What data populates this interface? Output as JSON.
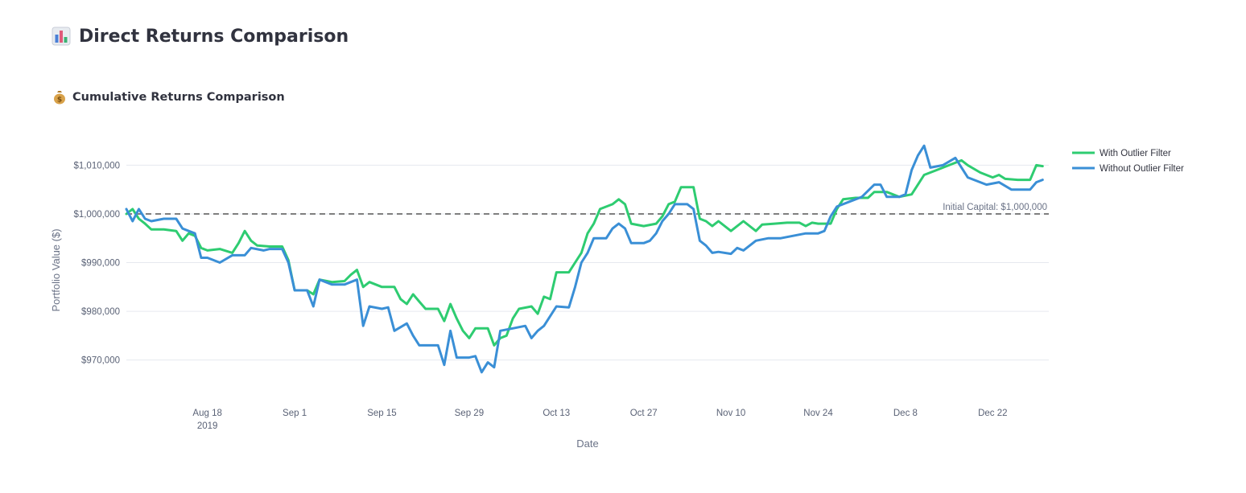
{
  "header": {
    "title": "Direct Returns Comparison",
    "icon": "bar-chart-icon"
  },
  "section": {
    "title": "Cumulative Returns Comparison",
    "icon": "money-bag-icon"
  },
  "chart_data": {
    "type": "line",
    "title": "",
    "xlabel": "Date",
    "ylabel": "Portfolio Value ($)",
    "xlim": [
      "2019-08-05",
      "2019-12-31"
    ],
    "ylim": [
      963000,
      1017500
    ],
    "x_ticks": [
      {
        "date": "2019-08-18",
        "label": "Aug 18",
        "sub": "2019"
      },
      {
        "date": "2019-09-01",
        "label": "Sep 1"
      },
      {
        "date": "2019-09-15",
        "label": "Sep 15"
      },
      {
        "date": "2019-09-29",
        "label": "Sep 29"
      },
      {
        "date": "2019-10-13",
        "label": "Oct 13"
      },
      {
        "date": "2019-10-27",
        "label": "Oct 27"
      },
      {
        "date": "2019-11-10",
        "label": "Nov 10"
      },
      {
        "date": "2019-11-24",
        "label": "Nov 24"
      },
      {
        "date": "2019-12-08",
        "label": "Dec 8"
      },
      {
        "date": "2019-12-22",
        "label": "Dec 22"
      }
    ],
    "y_ticks": [
      {
        "value": 970000,
        "label": "$970,000"
      },
      {
        "value": 980000,
        "label": "$980,000"
      },
      {
        "value": 990000,
        "label": "$990,000"
      },
      {
        "value": 1000000,
        "label": "$1,000,000"
      },
      {
        "value": 1010000,
        "label": "$1,010,000"
      }
    ],
    "grid": true,
    "legend_position": "top-right",
    "annotations": [
      {
        "type": "hline",
        "value": 1000000,
        "style": "dashed",
        "color": "#7f7f7f",
        "text": "Initial Capital: $1,000,000"
      }
    ],
    "series": [
      {
        "name": "With Outlier Filter",
        "color": "#2ecc71",
        "points": [
          [
            "2019-08-05",
            1000000
          ],
          [
            "2019-08-06",
            1001000
          ],
          [
            "2019-08-07",
            999000
          ],
          [
            "2019-08-08",
            998000
          ],
          [
            "2019-08-09",
            996800
          ],
          [
            "2019-08-11",
            996800
          ],
          [
            "2019-08-13",
            996500
          ],
          [
            "2019-08-14",
            994500
          ],
          [
            "2019-08-15",
            996000
          ],
          [
            "2019-08-16",
            995500
          ],
          [
            "2019-08-17",
            993000
          ],
          [
            "2019-08-18",
            992500
          ],
          [
            "2019-08-20",
            992800
          ],
          [
            "2019-08-22",
            992000
          ],
          [
            "2019-08-23",
            994000
          ],
          [
            "2019-08-24",
            996500
          ],
          [
            "2019-08-25",
            994500
          ],
          [
            "2019-08-26",
            993500
          ],
          [
            "2019-08-28",
            993300
          ],
          [
            "2019-08-30",
            993300
          ],
          [
            "2019-08-31",
            990500
          ],
          [
            "2019-09-01",
            984300
          ],
          [
            "2019-09-03",
            984300
          ],
          [
            "2019-09-04",
            983500
          ],
          [
            "2019-09-05",
            986500
          ],
          [
            "2019-09-07",
            986000
          ],
          [
            "2019-09-09",
            986200
          ],
          [
            "2019-09-10",
            987500
          ],
          [
            "2019-09-11",
            988500
          ],
          [
            "2019-09-12",
            985000
          ],
          [
            "2019-09-13",
            986000
          ],
          [
            "2019-09-15",
            985000
          ],
          [
            "2019-09-17",
            985000
          ],
          [
            "2019-09-18",
            982500
          ],
          [
            "2019-09-19",
            981500
          ],
          [
            "2019-09-20",
            983500
          ],
          [
            "2019-09-21",
            982000
          ],
          [
            "2019-09-22",
            980500
          ],
          [
            "2019-09-24",
            980500
          ],
          [
            "2019-09-25",
            978000
          ],
          [
            "2019-09-26",
            981500
          ],
          [
            "2019-09-27",
            978500
          ],
          [
            "2019-09-28",
            976000
          ],
          [
            "2019-09-29",
            974500
          ],
          [
            "2019-09-30",
            976500
          ],
          [
            "2019-10-02",
            976500
          ],
          [
            "2019-10-03",
            973000
          ],
          [
            "2019-10-04",
            974500
          ],
          [
            "2019-10-05",
            975000
          ],
          [
            "2019-10-06",
            978500
          ],
          [
            "2019-10-07",
            980500
          ],
          [
            "2019-10-09",
            981000
          ],
          [
            "2019-10-10",
            979500
          ],
          [
            "2019-10-11",
            983000
          ],
          [
            "2019-10-12",
            982500
          ],
          [
            "2019-10-13",
            988000
          ],
          [
            "2019-10-15",
            988000
          ],
          [
            "2019-10-16",
            990000
          ],
          [
            "2019-10-17",
            992000
          ],
          [
            "2019-10-18",
            996000
          ],
          [
            "2019-10-19",
            998000
          ],
          [
            "2019-10-20",
            1001000
          ],
          [
            "2019-10-22",
            1002000
          ],
          [
            "2019-10-23",
            1003000
          ],
          [
            "2019-10-24",
            1002000
          ],
          [
            "2019-10-25",
            998000
          ],
          [
            "2019-10-27",
            997500
          ],
          [
            "2019-10-29",
            998000
          ],
          [
            "2019-10-30",
            999500
          ],
          [
            "2019-10-31",
            1002000
          ],
          [
            "2019-11-01",
            1002500
          ],
          [
            "2019-11-02",
            1005500
          ],
          [
            "2019-11-04",
            1005500
          ],
          [
            "2019-11-05",
            999000
          ],
          [
            "2019-11-06",
            998500
          ],
          [
            "2019-11-07",
            997500
          ],
          [
            "2019-11-08",
            998500
          ],
          [
            "2019-11-10",
            996500
          ],
          [
            "2019-11-12",
            998500
          ],
          [
            "2019-11-14",
            996500
          ],
          [
            "2019-11-15",
            997800
          ],
          [
            "2019-11-17",
            998000
          ],
          [
            "2019-11-19",
            998200
          ],
          [
            "2019-11-21",
            998200
          ],
          [
            "2019-11-22",
            997500
          ],
          [
            "2019-11-23",
            998200
          ],
          [
            "2019-11-24",
            998000
          ],
          [
            "2019-11-26",
            998000
          ],
          [
            "2019-11-27",
            1001000
          ],
          [
            "2019-11-28",
            1003000
          ],
          [
            "2019-11-30",
            1003300
          ],
          [
            "2019-12-02",
            1003300
          ],
          [
            "2019-12-03",
            1004500
          ],
          [
            "2019-12-05",
            1004500
          ],
          [
            "2019-12-07",
            1003500
          ],
          [
            "2019-12-09",
            1004000
          ],
          [
            "2019-12-10",
            1006000
          ],
          [
            "2019-12-11",
            1008000
          ],
          [
            "2019-12-13",
            1009000
          ],
          [
            "2019-12-15",
            1010000
          ],
          [
            "2019-12-17",
            1011000
          ],
          [
            "2019-12-18",
            1010000
          ],
          [
            "2019-12-20",
            1008500
          ],
          [
            "2019-12-22",
            1007500
          ],
          [
            "2019-12-23",
            1008000
          ],
          [
            "2019-12-24",
            1007200
          ],
          [
            "2019-12-26",
            1007000
          ],
          [
            "2019-12-28",
            1007000
          ],
          [
            "2019-12-29",
            1010000
          ],
          [
            "2019-12-30",
            1009800
          ]
        ]
      },
      {
        "name": "Without Outlier Filter",
        "color": "#3a8fd6",
        "points": [
          [
            "2019-08-05",
            1001000
          ],
          [
            "2019-08-06",
            998500
          ],
          [
            "2019-08-07",
            1001000
          ],
          [
            "2019-08-08",
            999000
          ],
          [
            "2019-08-09",
            998500
          ],
          [
            "2019-08-11",
            999000
          ],
          [
            "2019-08-13",
            999000
          ],
          [
            "2019-08-14",
            997000
          ],
          [
            "2019-08-15",
            996500
          ],
          [
            "2019-08-16",
            996000
          ],
          [
            "2019-08-17",
            991000
          ],
          [
            "2019-08-18",
            991000
          ],
          [
            "2019-08-20",
            990000
          ],
          [
            "2019-08-22",
            991500
          ],
          [
            "2019-08-24",
            991500
          ],
          [
            "2019-08-25",
            993000
          ],
          [
            "2019-08-27",
            992500
          ],
          [
            "2019-08-28",
            992800
          ],
          [
            "2019-08-30",
            992800
          ],
          [
            "2019-08-31",
            990000
          ],
          [
            "2019-09-01",
            984300
          ],
          [
            "2019-09-03",
            984300
          ],
          [
            "2019-09-04",
            981000
          ],
          [
            "2019-09-05",
            986500
          ],
          [
            "2019-09-07",
            985500
          ],
          [
            "2019-09-09",
            985500
          ],
          [
            "2019-09-10",
            986000
          ],
          [
            "2019-09-11",
            986500
          ],
          [
            "2019-09-12",
            977000
          ],
          [
            "2019-09-13",
            981000
          ],
          [
            "2019-09-15",
            980500
          ],
          [
            "2019-09-16",
            980800
          ],
          [
            "2019-09-17",
            976000
          ],
          [
            "2019-09-19",
            977500
          ],
          [
            "2019-09-20",
            975000
          ],
          [
            "2019-09-21",
            973000
          ],
          [
            "2019-09-22",
            973000
          ],
          [
            "2019-09-24",
            973000
          ],
          [
            "2019-09-25",
            969000
          ],
          [
            "2019-09-26",
            976000
          ],
          [
            "2019-09-27",
            970500
          ],
          [
            "2019-09-29",
            970500
          ],
          [
            "2019-09-30",
            970800
          ],
          [
            "2019-10-01",
            967500
          ],
          [
            "2019-10-02",
            969500
          ],
          [
            "2019-10-03",
            968500
          ],
          [
            "2019-10-04",
            976000
          ],
          [
            "2019-10-06",
            976500
          ],
          [
            "2019-10-08",
            977000
          ],
          [
            "2019-10-09",
            974500
          ],
          [
            "2019-10-10",
            976000
          ],
          [
            "2019-10-11",
            977000
          ],
          [
            "2019-10-13",
            981000
          ],
          [
            "2019-10-15",
            980800
          ],
          [
            "2019-10-16",
            985000
          ],
          [
            "2019-10-17",
            990000
          ],
          [
            "2019-10-18",
            992000
          ],
          [
            "2019-10-19",
            995000
          ],
          [
            "2019-10-21",
            995000
          ],
          [
            "2019-10-22",
            997000
          ],
          [
            "2019-10-23",
            998000
          ],
          [
            "2019-10-24",
            997000
          ],
          [
            "2019-10-25",
            994000
          ],
          [
            "2019-10-27",
            994000
          ],
          [
            "2019-10-28",
            994500
          ],
          [
            "2019-10-29",
            996000
          ],
          [
            "2019-10-30",
            998500
          ],
          [
            "2019-10-31",
            1000000
          ],
          [
            "2019-11-01",
            1002000
          ],
          [
            "2019-11-03",
            1002000
          ],
          [
            "2019-11-04",
            1001000
          ],
          [
            "2019-11-05",
            994500
          ],
          [
            "2019-11-06",
            993500
          ],
          [
            "2019-11-07",
            992000
          ],
          [
            "2019-11-08",
            992200
          ],
          [
            "2019-11-10",
            991800
          ],
          [
            "2019-11-11",
            993000
          ],
          [
            "2019-11-12",
            992500
          ],
          [
            "2019-11-14",
            994500
          ],
          [
            "2019-11-16",
            995000
          ],
          [
            "2019-11-18",
            995000
          ],
          [
            "2019-11-20",
            995500
          ],
          [
            "2019-11-22",
            996000
          ],
          [
            "2019-11-24",
            996000
          ],
          [
            "2019-11-25",
            996500
          ],
          [
            "2019-11-26",
            999500
          ],
          [
            "2019-11-27",
            1001500
          ],
          [
            "2019-11-29",
            1002500
          ],
          [
            "2019-12-01",
            1003500
          ],
          [
            "2019-12-03",
            1006000
          ],
          [
            "2019-12-04",
            1006000
          ],
          [
            "2019-12-05",
            1003500
          ],
          [
            "2019-12-07",
            1003500
          ],
          [
            "2019-12-08",
            1004000
          ],
          [
            "2019-12-09",
            1009000
          ],
          [
            "2019-12-10",
            1012000
          ],
          [
            "2019-12-11",
            1014000
          ],
          [
            "2019-12-12",
            1009500
          ],
          [
            "2019-12-14",
            1010000
          ],
          [
            "2019-12-16",
            1011500
          ],
          [
            "2019-12-17",
            1009500
          ],
          [
            "2019-12-18",
            1007500
          ],
          [
            "2019-12-20",
            1006500
          ],
          [
            "2019-12-21",
            1006000
          ],
          [
            "2019-12-23",
            1006500
          ],
          [
            "2019-12-25",
            1005000
          ],
          [
            "2019-12-28",
            1005000
          ],
          [
            "2019-12-29",
            1006500
          ],
          [
            "2019-12-30",
            1007000
          ]
        ]
      }
    ]
  }
}
